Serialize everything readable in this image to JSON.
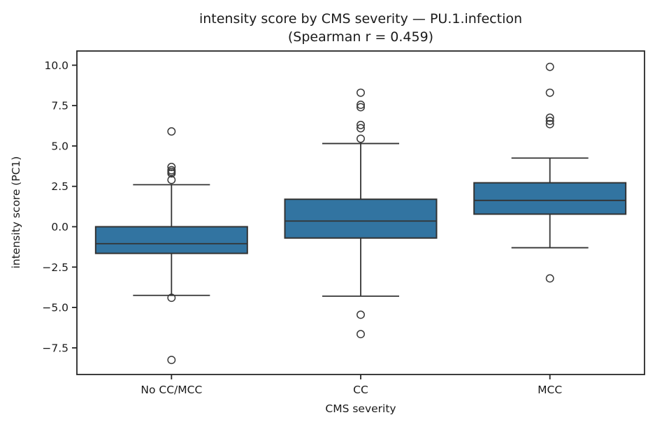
{
  "figure": {
    "background": "#ffffff"
  },
  "chart_data": {
    "type": "box",
    "title": "intensity score by CMS severity — PU.1.infection",
    "subtitle": "(Spearman r = 0.459)",
    "xlabel": "CMS severity",
    "ylabel": "intensity score (PC1)",
    "categories": [
      "No CC/MCC",
      "CC",
      "MCC"
    ],
    "yticks": [
      10.0,
      7.5,
      5.0,
      2.5,
      0.0,
      -2.5,
      -5.0,
      -7.5
    ],
    "ylim": [
      -9.15,
      10.88
    ],
    "xlim": [
      -0.5,
      2.5
    ],
    "grid": false,
    "legend": "none",
    "boxes": [
      {
        "label": "No CC/MCC",
        "whislo": -4.25,
        "q1": -1.65,
        "med": -1.05,
        "q3": 0.0,
        "whishi": 2.6,
        "fliers": [
          5.9,
          3.7,
          3.5,
          3.4,
          3.3,
          2.9,
          -4.4,
          -8.25
        ]
      },
      {
        "label": "CC",
        "whislo": -4.3,
        "q1": -0.7,
        "med": 0.35,
        "q3": 1.7,
        "whishi": 5.15,
        "fliers": [
          8.3,
          7.55,
          7.4,
          6.3,
          6.1,
          5.45,
          -5.45,
          -6.65
        ]
      },
      {
        "label": "MCC",
        "whislo": -1.3,
        "q1": 0.78,
        "med": 1.63,
        "q3": 2.72,
        "whishi": 4.25,
        "fliers": [
          9.9,
          8.3,
          6.75,
          6.55,
          6.35,
          -3.2
        ]
      }
    ],
    "colors": {
      "box_fill": "#3274a1",
      "box_edge": "#333333",
      "whisker": "#333333",
      "flier_edge": "#3a3a3a",
      "spine": "#262626",
      "text": "#1a1a1a"
    }
  }
}
